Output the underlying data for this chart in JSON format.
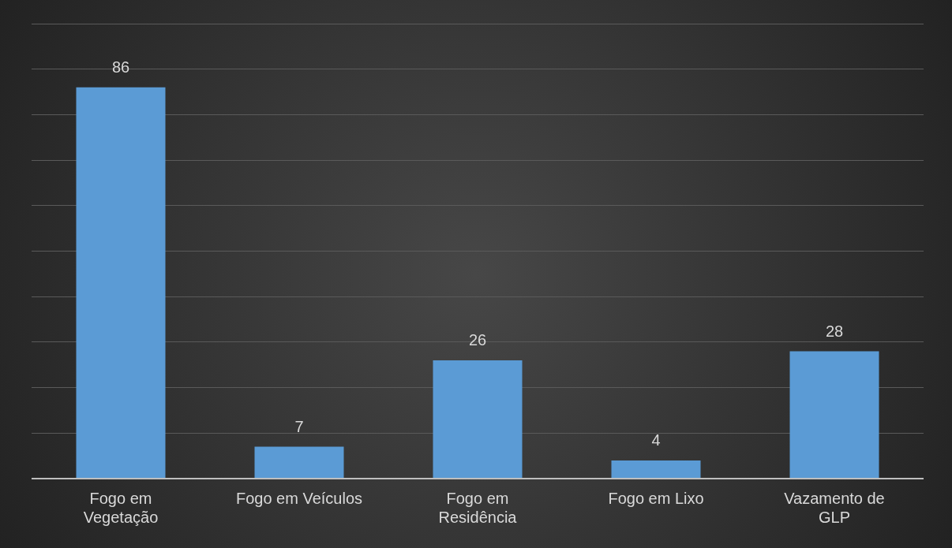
{
  "chart_data": {
    "type": "bar",
    "categories": [
      "Fogo em Vegetação",
      "Fogo em Veículos",
      "Fogo em Residência",
      "Fogo em Lixo",
      "Vazamento de GLP"
    ],
    "values": [
      86,
      7,
      26,
      4,
      28
    ],
    "color": "#5b9bd5",
    "ylim": [
      0,
      100
    ],
    "yticks": [
      {
        "value": 0,
        "label": null
      },
      {
        "value": 10,
        "label": null
      },
      {
        "value": 20,
        "label": null
      },
      {
        "value": 30,
        "label": null
      },
      {
        "value": 40,
        "label": null
      },
      {
        "value": 50,
        "label": null
      },
      {
        "value": 60,
        "label": null
      },
      {
        "value": 70,
        "label": null
      },
      {
        "value": 80,
        "label": null
      },
      {
        "value": 90,
        "label": null
      },
      {
        "value": 100,
        "label": null
      }
    ],
    "grid": "y",
    "tick_labels": "x",
    "data_labels": true
  }
}
